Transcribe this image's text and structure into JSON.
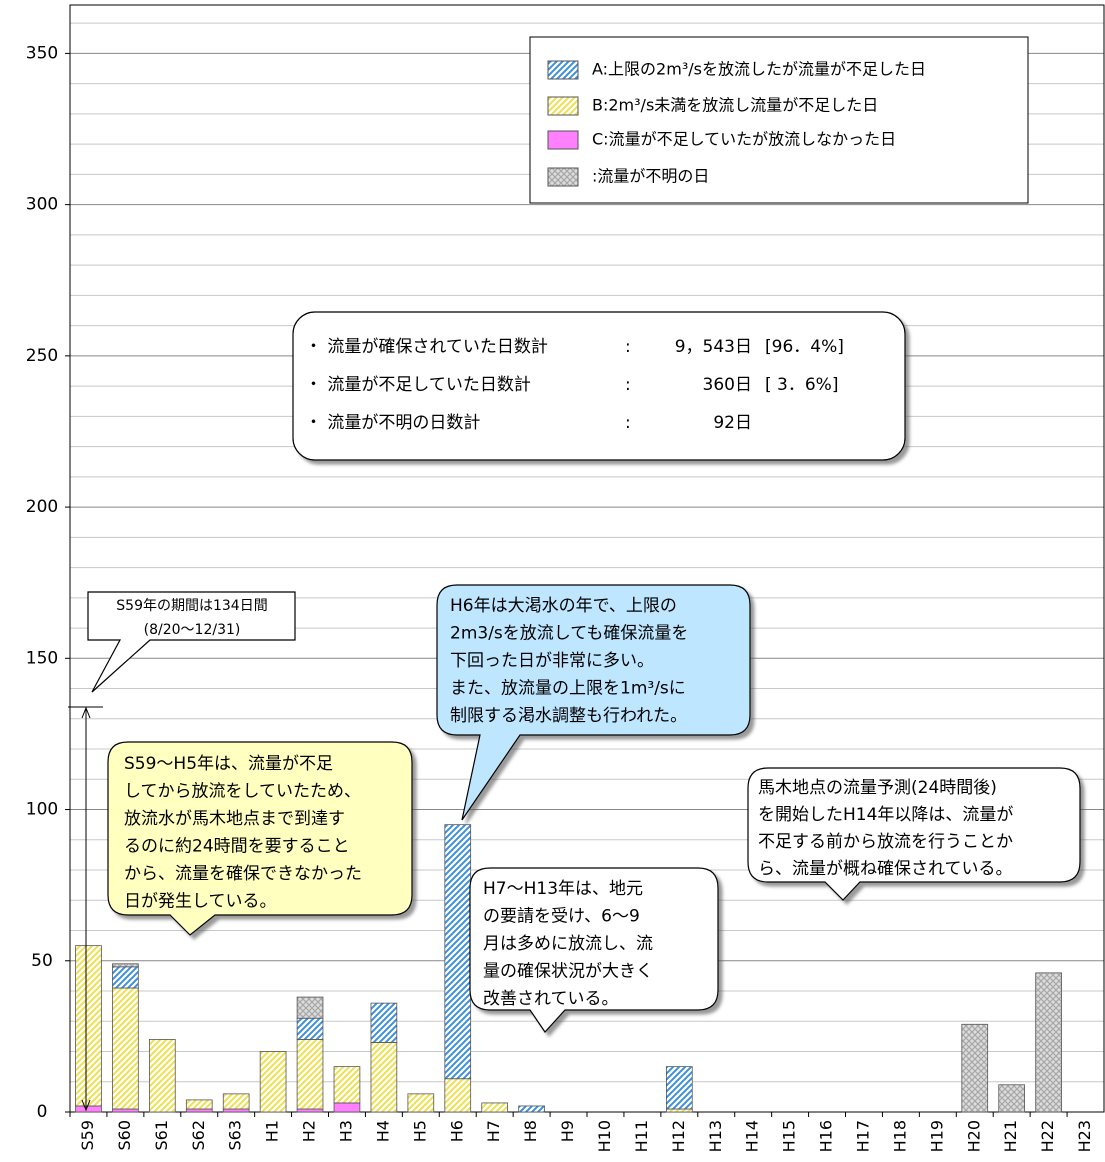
{
  "chart_data": {
    "type": "stacked_bar",
    "categories": [
      "S59",
      "S60",
      "S61",
      "S62",
      "S63",
      "H1",
      "H2",
      "H3",
      "H4",
      "H5",
      "H6",
      "H7",
      "H8",
      "H9",
      "H10",
      "H11",
      "H12",
      "H13",
      "H14",
      "H15",
      "H16",
      "H17",
      "H18",
      "H19",
      "H20",
      "H21",
      "H22",
      "H23"
    ],
    "series": [
      {
        "name": "A:上限の2m³/sを放流したが流量が不足した日",
        "color": "#3c8ee0",
        "fill": "hatch",
        "values": [
          0,
          7,
          0,
          0,
          0,
          0,
          7,
          0,
          13,
          0,
          84,
          0,
          2,
          0,
          0,
          0,
          14,
          0,
          0,
          0,
          0,
          0,
          0,
          0,
          0,
          0,
          0,
          0
        ]
      },
      {
        "name": "B:2m³/s未満を放流し流量が不足した日",
        "color": "#f0e050",
        "fill": "hatch",
        "values": [
          53,
          40,
          24,
          3,
          5,
          20,
          23,
          12,
          23,
          6,
          11,
          3,
          0,
          0,
          0,
          0,
          1,
          0,
          0,
          0,
          0,
          0,
          0,
          0,
          0,
          0,
          0,
          0
        ]
      },
      {
        "name": "C:流量が不足していたが放流しなかった日",
        "color": "#ff80ff",
        "fill": "solid",
        "values": [
          2,
          1,
          0,
          1,
          1,
          0,
          1,
          3,
          0,
          0,
          0,
          0,
          0,
          0,
          0,
          0,
          0,
          0,
          0,
          0,
          0,
          0,
          0,
          0,
          0,
          0,
          0,
          0
        ]
      },
      {
        "name": ":流量が不明の日",
        "color": "#a8a8a8",
        "fill": "cross",
        "values": [
          0,
          1,
          0,
          0,
          0,
          0,
          7,
          0,
          0,
          0,
          0,
          0,
          0,
          0,
          0,
          0,
          0,
          0,
          0,
          0,
          0,
          0,
          0,
          0,
          29,
          9,
          46,
          0
        ]
      }
    ],
    "ylim": [
      0,
      366
    ],
    "yticks": [
      0,
      50,
      100,
      150,
      200,
      250,
      300,
      350
    ],
    "minor_grid": 10,
    "grid": true,
    "summary": [
      [
        "・ 流量が確保されていた日数計",
        ":",
        "9，543日",
        "[96．4%]"
      ],
      [
        "・ 流量が不足していた日数計",
        ":",
        "360日",
        "[ 3．6%]"
      ],
      [
        "・ 流量が不明の日数計",
        ":",
        "92日"
      ]
    ],
    "annotations": [
      [
        "S59年の期間は134日間",
        "(8/20～12/31)"
      ],
      [
        "S59～H5年は、流量が不足",
        "してから放流をしていたため、",
        "放流水が馬木地点まで到達す",
        "るのに約24時間を要すること",
        "から、流量を確保できなかった",
        "日が発生している。"
      ],
      [
        "H6年は大渇水の年で、上限の",
        "2m3/sを放流しても確保流量を",
        "下回った日が非常に多い。",
        "また、放流量の上限を1m³/sに",
        "制限する渇水調整も行われた。"
      ],
      [
        "H7～H13年は、地元",
        "の要請を受け、6～9",
        "月は多めに放流し、流",
        "量の確保状況が大きく",
        "改善されている。"
      ],
      [
        "馬木地点の流量予測(24時間後)",
        "を開始したH14年以降は、流量が",
        "不足する前から放流を行うことか",
        "ら、流量が概ね確保されている。"
      ]
    ]
  }
}
